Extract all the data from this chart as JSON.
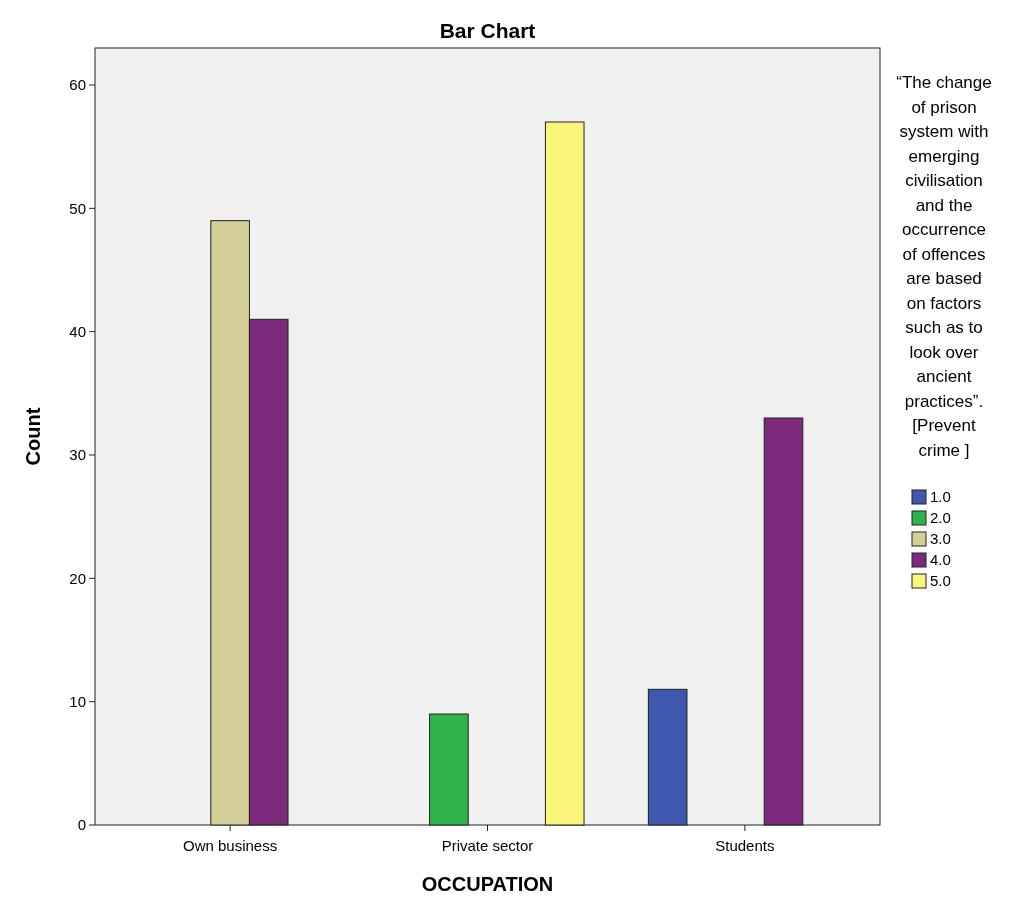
{
  "chart_data": {
    "type": "bar",
    "title": "Bar Chart",
    "xlabel": "OCCUPATION",
    "ylabel": "Count",
    "legend_title": "“The change of prison system with emerging civilisation and the occurrence of offences are based on factors such as to look over ancient practices”. [Prevent crime ]",
    "categories": [
      "Own business",
      "Private sector",
      "Students"
    ],
    "series": [
      {
        "name": "1.0",
        "color": "#3f58ad",
        "values": [
          null,
          null,
          11
        ]
      },
      {
        "name": "2.0",
        "color": "#2db34a",
        "values": [
          null,
          9,
          null
        ]
      },
      {
        "name": "3.0",
        "color": "#d4cf98",
        "values": [
          49,
          null,
          null
        ]
      },
      {
        "name": "4.0",
        "color": "#7b2a7c",
        "values": [
          41,
          null,
          33
        ]
      },
      {
        "name": "5.0",
        "color": "#f8f57a",
        "values": [
          null,
          57,
          null
        ]
      }
    ],
    "ylim": [
      0,
      63
    ],
    "yticks": [
      0,
      10,
      20,
      30,
      40,
      50,
      60
    ],
    "grid": false,
    "legend": "right"
  }
}
